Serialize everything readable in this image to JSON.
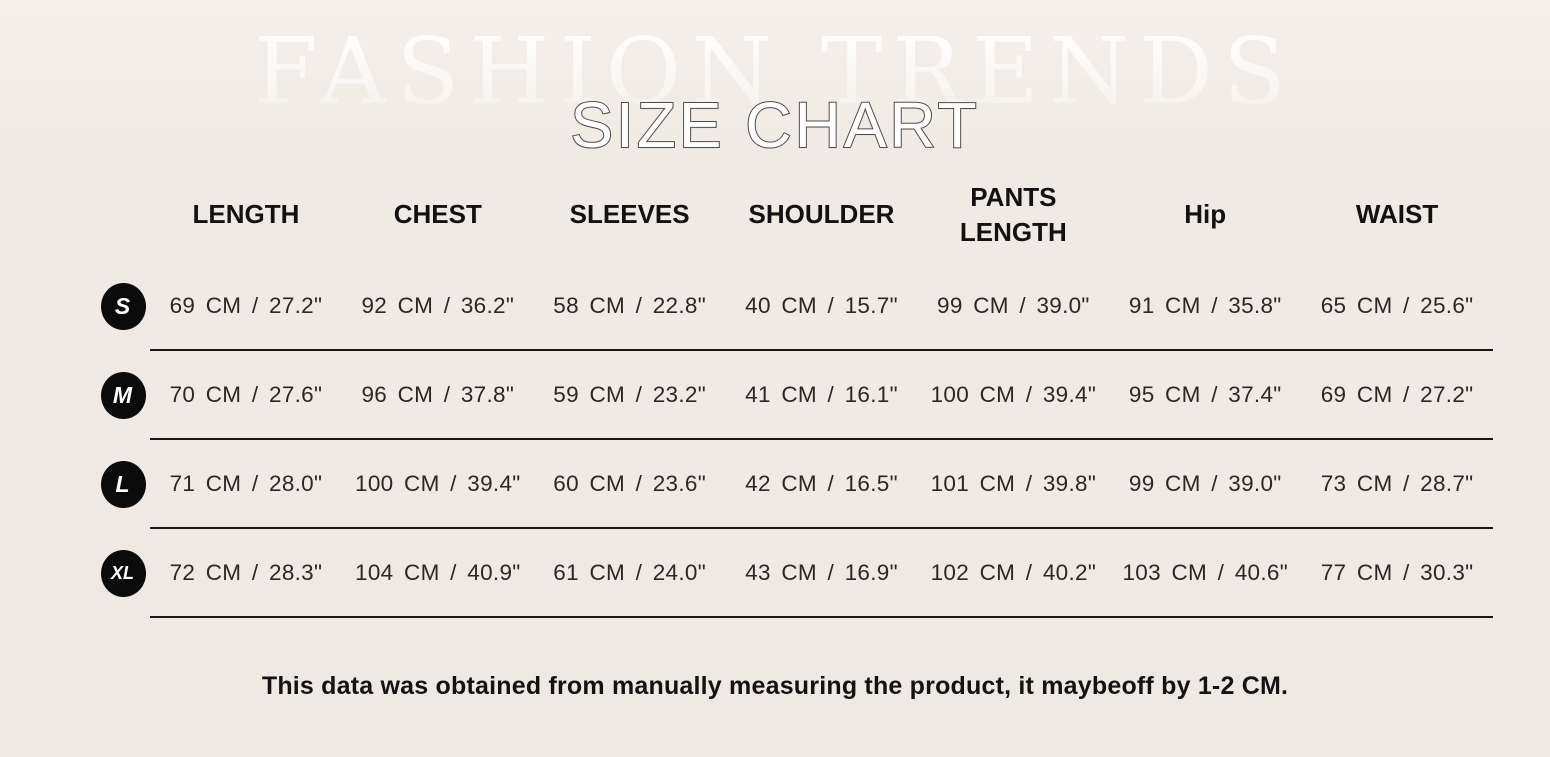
{
  "page": {
    "watermark": "FASHION TRENDS",
    "title": "SIZE CHART",
    "footer_note": "This data was obtained from manually measuring the product, it maybeoff by 1-2 CM."
  },
  "colors": {
    "background": "#efe9e3",
    "text": "#2b2723",
    "header_text": "#121212",
    "badge_background": "#0b0b0b",
    "badge_text": "#ffffff",
    "row_divider": "#181512",
    "title_fill": "#ffffff",
    "title_outline": "#4f4b48"
  },
  "chart_data": {
    "type": "table",
    "title": "SIZE CHART",
    "columns": [
      "LENGTH",
      "CHEST",
      "SLEEVES",
      "SHOULDER",
      "PANTS\nLENGTH",
      "Hip",
      "WAIST"
    ],
    "rows": [
      {
        "size": "S",
        "cells": [
          "69 CM / 27.2\"",
          "92 CM / 36.2\"",
          "58 CM / 22.8\"",
          "40 CM / 15.7\"",
          "99 CM / 39.0\"",
          "91 CM / 35.8\"",
          "65 CM / 25.6\""
        ]
      },
      {
        "size": "M",
        "cells": [
          "70 CM / 27.6\"",
          "96 CM / 37.8\"",
          "59 CM / 23.2\"",
          "41 CM / 16.1\"",
          "100 CM / 39.4\"",
          "95 CM / 37.4\"",
          "69 CM / 27.2\""
        ]
      },
      {
        "size": "L",
        "cells": [
          "71 CM / 28.0\"",
          "100 CM / 39.4\"",
          "60 CM / 23.6\"",
          "42 CM / 16.5\"",
          "101 CM / 39.8\"",
          "99 CM / 39.0\"",
          "73 CM / 28.7\""
        ]
      },
      {
        "size": "XL",
        "cells": [
          "72 CM / 28.3\"",
          "104 CM / 40.9\"",
          "61 CM / 24.0\"",
          "43 CM / 16.9\"",
          "102 CM / 40.2\"",
          "103 CM / 40.6\"",
          "77 CM / 30.3\""
        ]
      }
    ],
    "footnote": "This data was obtained from manually measuring the product, it maybeoff by 1-2 CM."
  }
}
